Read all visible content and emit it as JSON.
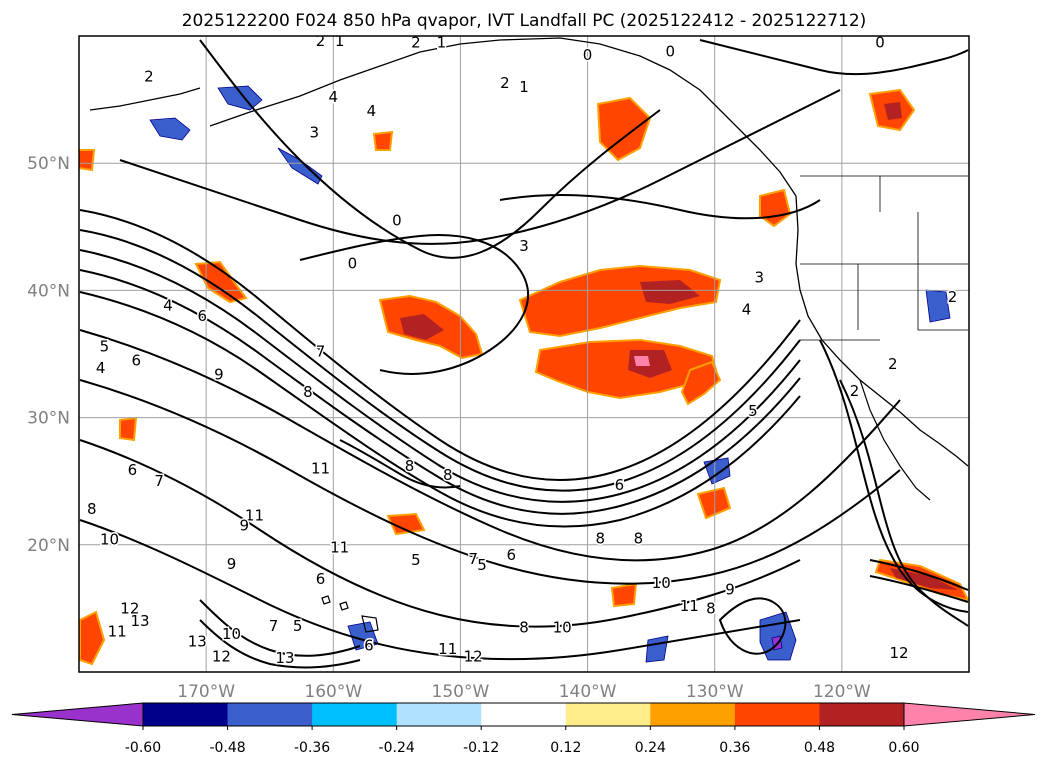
{
  "chart_data": {
    "type": "contour-map",
    "title": "2025122200 F024 850 hPa qvapor, IVT Landfall PC (2025122412 - 2025122712)",
    "longitude_ticks": [
      "170°W",
      "160°W",
      "150°W",
      "140°W",
      "130°W",
      "120°W"
    ],
    "longitude_values": [
      -170,
      -160,
      -150,
      -140,
      -130,
      -120
    ],
    "latitude_ticks": [
      "50°N",
      "40°N",
      "30°N",
      "20°N"
    ],
    "latitude_values": [
      50,
      40,
      30,
      20
    ],
    "extent": {
      "lon": [
        -180,
        -110
      ],
      "lat": [
        10,
        60
      ]
    },
    "grid": true,
    "contour_field": "850 hPa qvapor",
    "contour_labels": [
      "0",
      "1",
      "2",
      "3",
      "4",
      "5",
      "6",
      "7",
      "8",
      "9",
      "10",
      "11",
      "12",
      "13"
    ],
    "colorbar": {
      "extend": "both",
      "levels": [
        -0.6,
        -0.48,
        -0.36,
        -0.24,
        -0.12,
        0.12,
        0.24,
        0.36,
        0.48,
        0.6
      ],
      "tick_labels": [
        "-0.60",
        "-0.48",
        "-0.36",
        "-0.24",
        "-0.12",
        "0.12",
        "0.24",
        "0.36",
        "0.48",
        "0.60"
      ],
      "colors": [
        "#9932cc",
        "#00008b",
        "#3a5fcd",
        "#00bfff",
        "#b0e2ff",
        "#ffffff",
        "#ffec8b",
        "#ff9f00",
        "#ff4500",
        "#b22222",
        "#ff82ab",
        "#ff82ab"
      ]
    },
    "contour_label_marks": [
      {
        "text": "2",
        "lon": -174.5,
        "lat": 56.8
      },
      {
        "text": "2",
        "lon": -161,
        "lat": 59.6
      },
      {
        "text": "1",
        "lon": -159.5,
        "lat": 59.6
      },
      {
        "text": "2",
        "lon": -153.5,
        "lat": 59.5
      },
      {
        "text": "1",
        "lon": -151.5,
        "lat": 59.5
      },
      {
        "text": "4",
        "lon": -160,
        "lat": 55.2
      },
      {
        "text": "4",
        "lon": -157,
        "lat": 54.1
      },
      {
        "text": "3",
        "lon": -161.5,
        "lat": 52.4
      },
      {
        "text": "2",
        "lon": -146.5,
        "lat": 56.3
      },
      {
        "text": "1",
        "lon": -145,
        "lat": 56
      },
      {
        "text": "0",
        "lon": -140,
        "lat": 58.5
      },
      {
        "text": "0",
        "lon": -133.5,
        "lat": 58.8
      },
      {
        "text": "0",
        "lon": -117,
        "lat": 59.5
      },
      {
        "text": "0",
        "lon": -155,
        "lat": 45.5
      },
      {
        "text": "0",
        "lon": -158.5,
        "lat": 42.1
      },
      {
        "text": "3",
        "lon": -145,
        "lat": 43.5
      },
      {
        "text": "3",
        "lon": -126.5,
        "lat": 41
      },
      {
        "text": "4",
        "lon": -127.5,
        "lat": 38.5
      },
      {
        "text": "2",
        "lon": -111.3,
        "lat": 39.5
      },
      {
        "text": "2",
        "lon": -116,
        "lat": 34.2
      },
      {
        "text": "2",
        "lon": -119,
        "lat": 32.1
      },
      {
        "text": "4",
        "lon": -173,
        "lat": 38.8
      },
      {
        "text": "6",
        "lon": -170.3,
        "lat": 38
      },
      {
        "text": "5",
        "lon": -178,
        "lat": 35.6
      },
      {
        "text": "6",
        "lon": -175.5,
        "lat": 34.5
      },
      {
        "text": "4",
        "lon": -178.3,
        "lat": 33.9
      },
      {
        "text": "7",
        "lon": -161,
        "lat": 35.2
      },
      {
        "text": "9",
        "lon": -169,
        "lat": 33.4
      },
      {
        "text": "8",
        "lon": -162,
        "lat": 32
      },
      {
        "text": "5",
        "lon": -127,
        "lat": 30.5
      },
      {
        "text": "6",
        "lon": -137.5,
        "lat": 24.7
      },
      {
        "text": "8",
        "lon": -154,
        "lat": 26.2
      },
      {
        "text": "8",
        "lon": -151,
        "lat": 25.5
      },
      {
        "text": "11",
        "lon": -161,
        "lat": 26
      },
      {
        "text": "6",
        "lon": -175.8,
        "lat": 25.9
      },
      {
        "text": "7",
        "lon": -173.7,
        "lat": 25
      },
      {
        "text": "8",
        "lon": -179,
        "lat": 22.8
      },
      {
        "text": "11",
        "lon": -166.2,
        "lat": 22.3
      },
      {
        "text": "9",
        "lon": -167,
        "lat": 21.5
      },
      {
        "text": "11",
        "lon": -159.5,
        "lat": 19.8
      },
      {
        "text": "10",
        "lon": -177.6,
        "lat": 20.4
      },
      {
        "text": "9",
        "lon": -168,
        "lat": 18.5
      },
      {
        "text": "6",
        "lon": -161,
        "lat": 17.3
      },
      {
        "text": "5",
        "lon": -153.5,
        "lat": 18.8
      },
      {
        "text": "7",
        "lon": -149,
        "lat": 18.9
      },
      {
        "text": "5",
        "lon": -148.3,
        "lat": 18.4
      },
      {
        "text": "6",
        "lon": -146,
        "lat": 19.2
      },
      {
        "text": "8",
        "lon": -139,
        "lat": 20.5
      },
      {
        "text": "8",
        "lon": -136,
        "lat": 20.5
      },
      {
        "text": "10",
        "lon": -134.2,
        "lat": 17
      },
      {
        "text": "11",
        "lon": -132,
        "lat": 15.2
      },
      {
        "text": "9",
        "lon": -128.8,
        "lat": 16.5
      },
      {
        "text": "8",
        "lon": -130.3,
        "lat": 15
      },
      {
        "text": "12",
        "lon": -176,
        "lat": 15
      },
      {
        "text": "13",
        "lon": -175.2,
        "lat": 14
      },
      {
        "text": "11",
        "lon": -177,
        "lat": 13.2
      },
      {
        "text": "10",
        "lon": -168,
        "lat": 13
      },
      {
        "text": "7",
        "lon": -164.7,
        "lat": 13.6
      },
      {
        "text": "5",
        "lon": -162.8,
        "lat": 13.6
      },
      {
        "text": "6",
        "lon": -157.2,
        "lat": 12.1
      },
      {
        "text": "13",
        "lon": -170.7,
        "lat": 12.4
      },
      {
        "text": "12",
        "lon": -168.8,
        "lat": 11.2
      },
      {
        "text": "13",
        "lon": -163.8,
        "lat": 11.1
      },
      {
        "text": "11",
        "lon": -151,
        "lat": 11.8
      },
      {
        "text": "12",
        "lon": -149,
        "lat": 11.2
      },
      {
        "text": "8",
        "lon": -145,
        "lat": 13.5
      },
      {
        "text": "10",
        "lon": -142,
        "lat": 13.5
      },
      {
        "text": "12",
        "lon": -115.5,
        "lat": 11.5
      }
    ]
  }
}
